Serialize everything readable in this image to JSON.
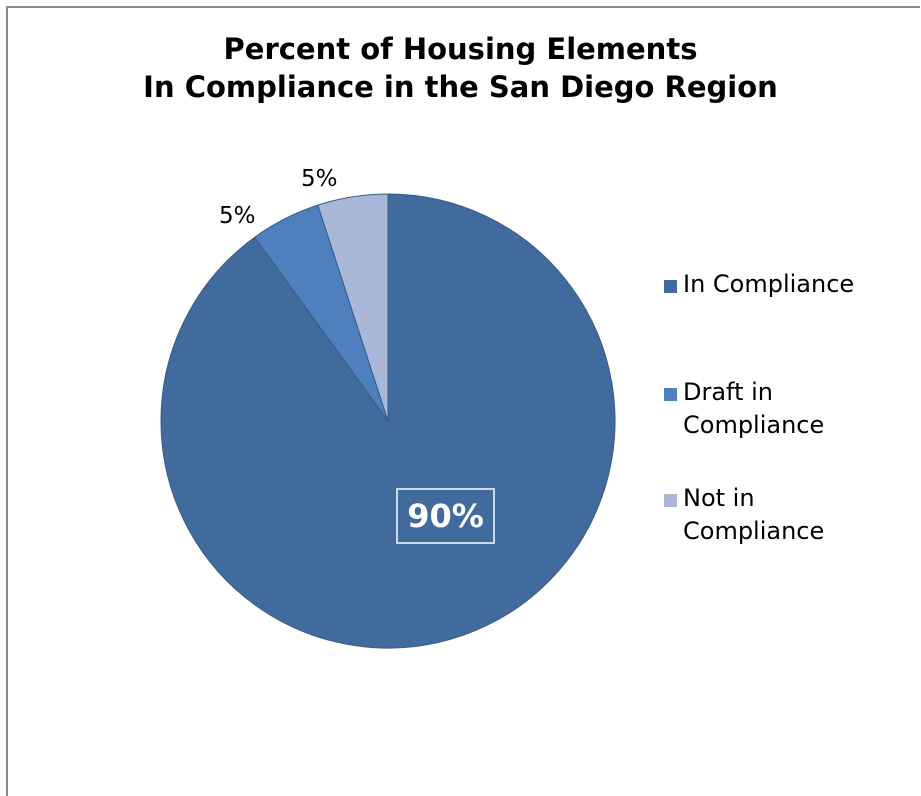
{
  "chart_data": {
    "type": "pie",
    "title_lines": [
      "Percent of Housing Elements",
      "In Compliance in the San Diego Region"
    ],
    "slices": [
      {
        "label": "In Compliance",
        "value": 90,
        "data_label": "90%",
        "color": "#416a9d"
      },
      {
        "label": "Draft in Compliance",
        "value": 5,
        "data_label": "5%",
        "color": "#4d80bd"
      },
      {
        "label": "Not in Compliance",
        "value": 5,
        "data_label": "5%",
        "color": "#a9b8d8"
      }
    ],
    "legend": {
      "placement": "right",
      "entries": [
        {
          "lines": [
            "In Compliance"
          ]
        },
        {
          "lines": [
            "Draft in",
            "Compliance"
          ]
        },
        {
          "lines": [
            "Not in",
            "Compliance"
          ]
        }
      ]
    }
  }
}
